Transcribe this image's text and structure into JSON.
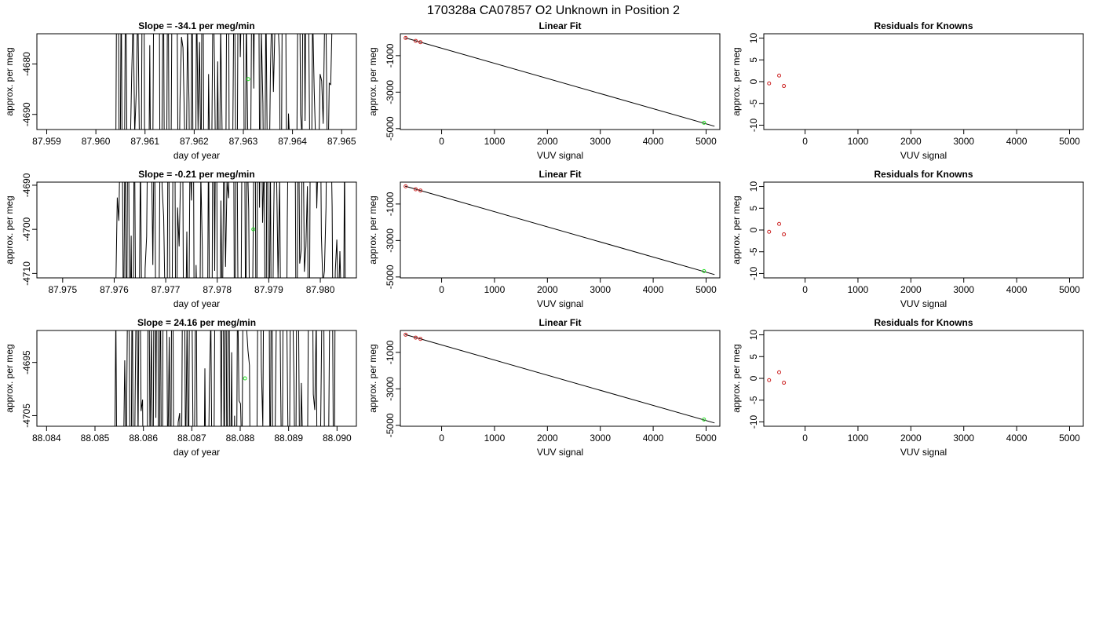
{
  "page_title": "170328a     CA07857   O2 Unknown in Position  2",
  "colors": {
    "known_point": "#cc2222",
    "unknown_point": "#22dd22",
    "line": "#000000"
  },
  "chart_data": [
    {
      "type": "line",
      "panel": "timeseries",
      "title": "Slope =  -34.1  per meg/min",
      "xlabel": "day of year",
      "ylabel": "approx. per meg",
      "xlim": [
        87.9588,
        87.9653
      ],
      "ylim": [
        -4693,
        -4674
      ],
      "xticks": [
        87.959,
        87.96,
        87.961,
        87.962,
        87.963,
        87.964,
        87.965
      ],
      "xtick_labels": [
        "87.959",
        "87.960",
        "87.961",
        "87.962",
        "87.963",
        "87.964",
        "87.965"
      ],
      "yticks": [
        -4680,
        -4690
      ],
      "ytick_labels": [
        "-4680",
        "-4690"
      ],
      "noise": {
        "x_start": 87.9603,
        "x_end": 87.9649,
        "seed": 11
      },
      "unknown_point": {
        "x": 87.9631,
        "y": -4683
      }
    },
    {
      "type": "scatter",
      "panel": "fit",
      "title": "Linear Fit",
      "xlabel": "VUV signal",
      "ylabel": "approx. per meg",
      "xlim": [
        -780,
        5260
      ],
      "ylim": [
        -5050,
        200
      ],
      "xticks": [
        0,
        1000,
        2000,
        3000,
        4000,
        5000
      ],
      "xtick_labels": [
        "0",
        "1000",
        "2000",
        "3000",
        "4000",
        "5000"
      ],
      "yticks": [
        -1000,
        -3000,
        -5000
      ],
      "ytick_labels": [
        "-1000",
        "-3000",
        "-5000"
      ],
      "known_points": [
        {
          "x": -680,
          "y": -30
        },
        {
          "x": -490,
          "y": -190
        },
        {
          "x": -400,
          "y": -260
        }
      ],
      "unknown_point": {
        "x": 4960,
        "y": -4680
      },
      "fit_line": [
        {
          "x": -690,
          "y": -20
        },
        {
          "x": 5160,
          "y": -4870
        }
      ]
    },
    {
      "type": "scatter",
      "panel": "residuals",
      "title": "Residuals for Knowns",
      "xlabel": "VUV signal",
      "ylabel": "approx. per meg",
      "xlim": [
        -780,
        5260
      ],
      "ylim": [
        -11,
        11
      ],
      "xticks": [
        0,
        1000,
        2000,
        3000,
        4000,
        5000
      ],
      "xtick_labels": [
        "0",
        "1000",
        "2000",
        "3000",
        "4000",
        "5000"
      ],
      "yticks": [
        10,
        5,
        0,
        -5,
        -10
      ],
      "ytick_labels": [
        "10",
        "5",
        "0",
        "-5",
        "-10"
      ],
      "points": [
        {
          "x": -680,
          "y": -0.4
        },
        {
          "x": -490,
          "y": 1.4
        },
        {
          "x": -400,
          "y": -1.0
        }
      ]
    },
    {
      "type": "line",
      "panel": "timeseries",
      "title": "Slope =  -0.21  per meg/min",
      "xlabel": "day of year",
      "ylabel": "approx. per meg",
      "xlim": [
        87.9745,
        87.9807
      ],
      "ylim": [
        -4711,
        -4689.3
      ],
      "xticks": [
        87.975,
        87.976,
        87.977,
        87.978,
        87.979,
        87.98
      ],
      "xtick_labels": [
        "87.975",
        "87.976",
        "87.977",
        "87.978",
        "87.979",
        "87.980"
      ],
      "yticks": [
        -4690,
        -4700,
        -4710
      ],
      "ytick_labels": [
        "-4690",
        "-4700",
        "-4710"
      ],
      "noise": {
        "x_start": 87.976,
        "x_end": 87.9805,
        "seed": 23
      },
      "unknown_point": {
        "x": 87.9787,
        "y": -4700
      }
    },
    {
      "type": "scatter",
      "panel": "fit",
      "title": "Linear Fit",
      "xlabel": "VUV signal",
      "ylabel": "approx. per meg",
      "xlim": [
        -780,
        5260
      ],
      "ylim": [
        -5050,
        200
      ],
      "xticks": [
        0,
        1000,
        2000,
        3000,
        4000,
        5000
      ],
      "xtick_labels": [
        "0",
        "1000",
        "2000",
        "3000",
        "4000",
        "5000"
      ],
      "yticks": [
        -1000,
        -3000,
        -5000
      ],
      "ytick_labels": [
        "-1000",
        "-3000",
        "-5000"
      ],
      "known_points": [
        {
          "x": -680,
          "y": -30
        },
        {
          "x": -490,
          "y": -190
        },
        {
          "x": -400,
          "y": -260
        }
      ],
      "unknown_point": {
        "x": 4960,
        "y": -4680
      },
      "fit_line": [
        {
          "x": -690,
          "y": -20
        },
        {
          "x": 5160,
          "y": -4870
        }
      ]
    },
    {
      "type": "scatter",
      "panel": "residuals",
      "title": "Residuals for Knowns",
      "xlabel": "VUV signal",
      "ylabel": "approx. per meg",
      "xlim": [
        -780,
        5260
      ],
      "ylim": [
        -11,
        11
      ],
      "xticks": [
        0,
        1000,
        2000,
        3000,
        4000,
        5000
      ],
      "xtick_labels": [
        "0",
        "1000",
        "2000",
        "3000",
        "4000",
        "5000"
      ],
      "yticks": [
        10,
        5,
        0,
        -5,
        -10
      ],
      "ytick_labels": [
        "10",
        "5",
        "0",
        "-5",
        "-10"
      ],
      "points": [
        {
          "x": -680,
          "y": -0.4
        },
        {
          "x": -490,
          "y": 1.4
        },
        {
          "x": -400,
          "y": -1.0
        }
      ]
    },
    {
      "type": "line",
      "panel": "timeseries",
      "title": "Slope =  24.16  per meg/min",
      "xlabel": "day of year",
      "ylabel": "approx. per meg",
      "xlim": [
        88.0838,
        88.0904
      ],
      "ylim": [
        -4707,
        -4689
      ],
      "xticks": [
        88.084,
        88.085,
        88.086,
        88.087,
        88.088,
        88.089,
        88.09
      ],
      "xtick_labels": [
        "88.084",
        "88.085",
        "88.086",
        "88.087",
        "88.088",
        "88.089",
        "88.090"
      ],
      "yticks": [
        -4695,
        -4705
      ],
      "ytick_labels": [
        "-4695",
        "-4705"
      ],
      "noise": {
        "x_start": 88.0854,
        "x_end": 88.09,
        "seed": 37
      },
      "unknown_point": {
        "x": 88.0881,
        "y": -4698
      }
    },
    {
      "type": "scatter",
      "panel": "fit",
      "title": "Linear Fit",
      "xlabel": "VUV signal",
      "ylabel": "approx. per meg",
      "xlim": [
        -780,
        5260
      ],
      "ylim": [
        -5050,
        200
      ],
      "xticks": [
        0,
        1000,
        2000,
        3000,
        4000,
        5000
      ],
      "xtick_labels": [
        "0",
        "1000",
        "2000",
        "3000",
        "4000",
        "5000"
      ],
      "yticks": [
        -1000,
        -3000,
        -5000
      ],
      "ytick_labels": [
        "-1000",
        "-3000",
        "-5000"
      ],
      "known_points": [
        {
          "x": -680,
          "y": -30
        },
        {
          "x": -490,
          "y": -190
        },
        {
          "x": -400,
          "y": -260
        }
      ],
      "unknown_point": {
        "x": 4960,
        "y": -4680
      },
      "fit_line": [
        {
          "x": -690,
          "y": -20
        },
        {
          "x": 5160,
          "y": -4870
        }
      ]
    },
    {
      "type": "scatter",
      "panel": "residuals",
      "title": "Residuals for Knowns",
      "xlabel": "VUV signal",
      "ylabel": "approx. per meg",
      "xlim": [
        -780,
        5260
      ],
      "ylim": [
        -11,
        11
      ],
      "xticks": [
        0,
        1000,
        2000,
        3000,
        4000,
        5000
      ],
      "xtick_labels": [
        "0",
        "1000",
        "2000",
        "3000",
        "4000",
        "5000"
      ],
      "points": [
        {
          "x": -680,
          "y": -0.4
        },
        {
          "x": -490,
          "y": 1.4
        },
        {
          "x": -400,
          "y": -1.0
        }
      ],
      "yticks": [
        10,
        5,
        0,
        -5,
        -10
      ],
      "ytick_labels": [
        "10",
        "5",
        "0",
        "-5",
        "-10"
      ]
    }
  ]
}
